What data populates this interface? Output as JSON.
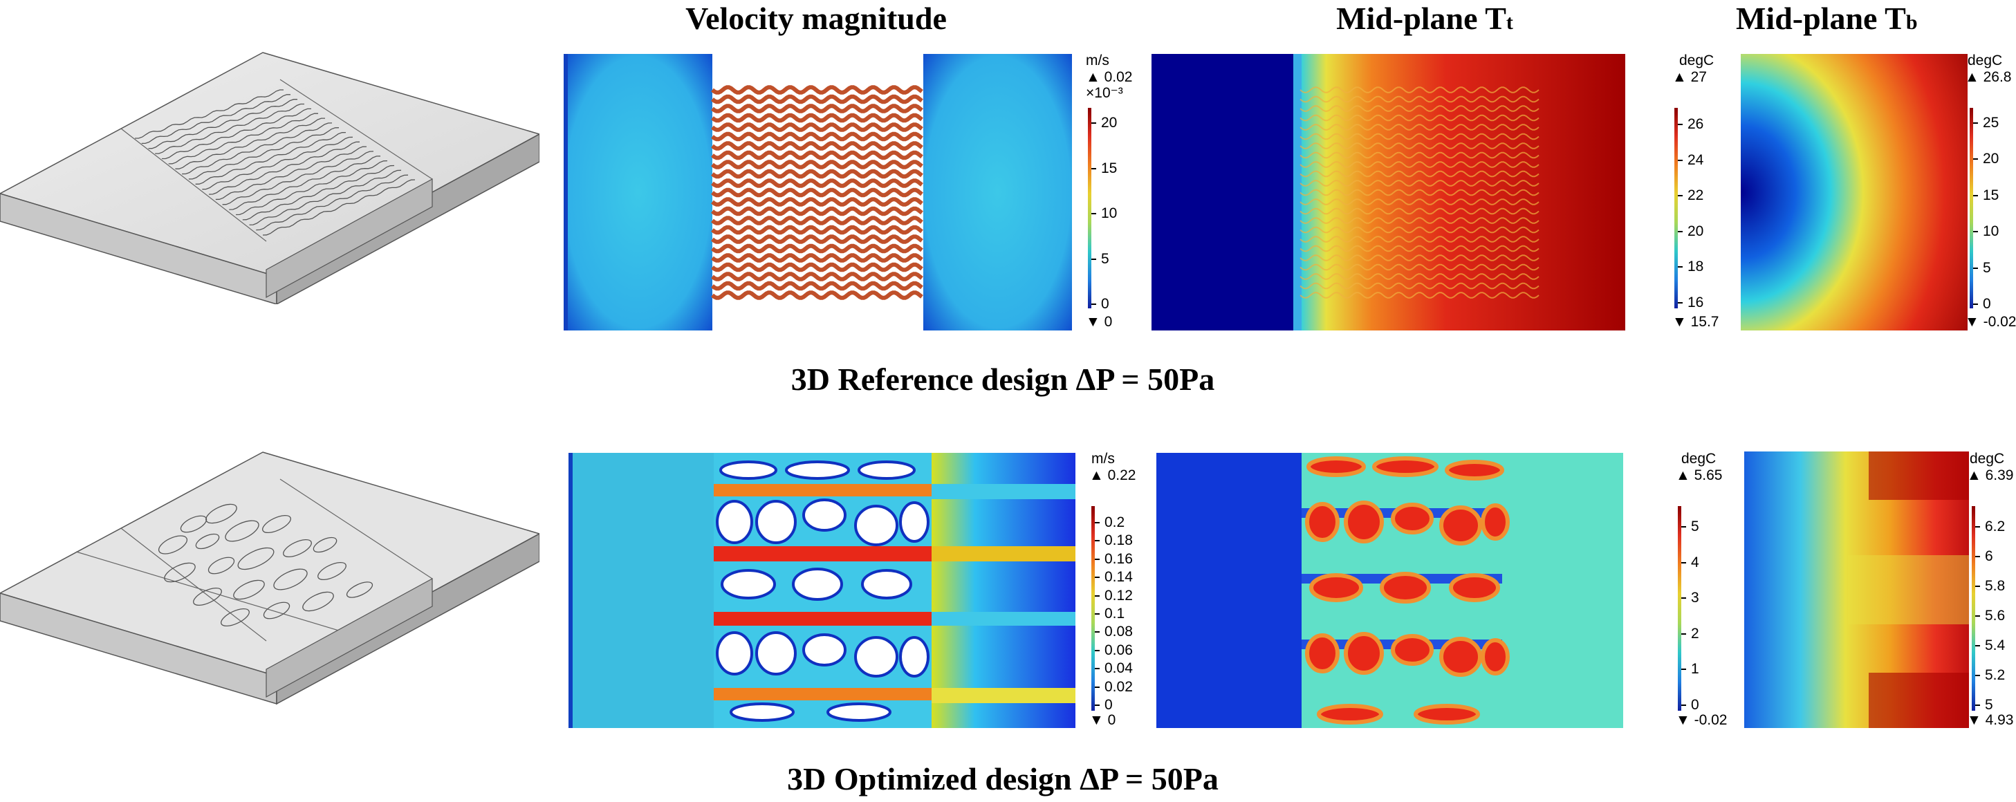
{
  "headers": {
    "velocity": "Velocity magnitude",
    "tt_main": "Mid-plane T",
    "tt_sub": "t",
    "tb_main": "Mid-plane T",
    "tb_sub": "b"
  },
  "captions": {
    "reference": "3D Reference design ΔP = 50Pa",
    "optimized": "3D Optimized design ΔP = 50Pa"
  },
  "colorbars": {
    "ref_velocity": {
      "unit": "m/s",
      "max": "▲ 0.02",
      "scale": "×10⁻³",
      "min": "▼ 0",
      "ticks": [
        "20",
        "15",
        "10",
        "5",
        "0"
      ]
    },
    "ref_tt": {
      "unit": "degC",
      "max": "▲ 27",
      "min": "▼ 15.7",
      "ticks": [
        "26",
        "24",
        "22",
        "20",
        "18",
        "16"
      ]
    },
    "ref_tb": {
      "unit": "degC",
      "max": "▲ 26.8",
      "min": "▼ -0.02",
      "ticks": [
        "25",
        "20",
        "15",
        "10",
        "5",
        "0"
      ]
    },
    "opt_velocity": {
      "unit": "m/s",
      "max": "▲ 0.22",
      "min": "▼ 0",
      "ticks": [
        "0.2",
        "0.18",
        "0.16",
        "0.14",
        "0.12",
        "0.1",
        "0.08",
        "0.06",
        "0.04",
        "0.02",
        "0"
      ]
    },
    "opt_tt": {
      "unit": "degC",
      "max": "▲ 5.65",
      "min": "▼ -0.02",
      "ticks": [
        "5",
        "4",
        "3",
        "2",
        "1",
        "0"
      ]
    },
    "opt_tb": {
      "unit": "degC",
      "max": "▲ 6.39",
      "min": "▼ 4.93",
      "ticks": [
        "6.2",
        "6",
        "5.8",
        "5.6",
        "5.4",
        "5.2",
        "5"
      ]
    }
  },
  "colors": {
    "jet": [
      "#00008f",
      "#0000ff",
      "#0080ff",
      "#00ffff",
      "#80ff80",
      "#ffff00",
      "#ff8000",
      "#ff0000",
      "#800000"
    ],
    "rainbow_bar": [
      "#8b0000",
      "#e03020",
      "#f08020",
      "#e8d030",
      "#a8d858",
      "#30c8c8",
      "#2080e0",
      "#1020a0"
    ],
    "solid_gray": "#d4d4d4"
  }
}
